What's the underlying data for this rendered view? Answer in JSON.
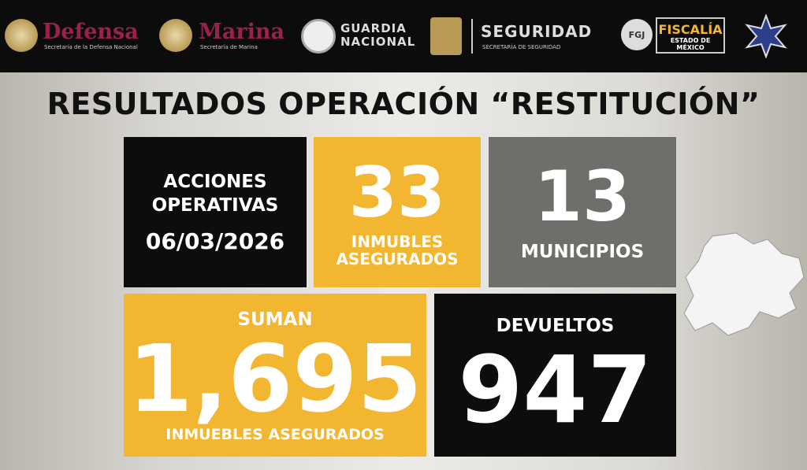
{
  "header": {
    "logos": [
      {
        "name": "Defensa",
        "subtitle": "Secretaría de la Defensa Nacional"
      },
      {
        "name": "Marina",
        "subtitle": "Secretaría de Marina"
      },
      {
        "name": "GUARDIA NACIONAL"
      },
      {
        "name": "SEGURIDAD",
        "subtitle": "SECRETARÍA DE SEGURIDAD"
      },
      {
        "name": "FISCALÍA",
        "subtitle": "ESTADO DE MÉXICO",
        "badge": "FGJ"
      }
    ]
  },
  "title": "RESULTADOS OPERACIÓN “RESTITUCIÓN”",
  "boxes": [
    {
      "label": "ACCIONES OPERATIVAS",
      "date": "06/03/2026"
    },
    {
      "value": "33",
      "label": "INMUBLES ASEGURADOS"
    },
    {
      "value": "13",
      "label": "MUNICIPIOS"
    },
    {
      "prefix": "SUMAN",
      "value": "1,695",
      "label": "INMUEBLES ASEGURADOS"
    },
    {
      "label": "DEVUELTOS",
      "value": "947"
    }
  ]
}
